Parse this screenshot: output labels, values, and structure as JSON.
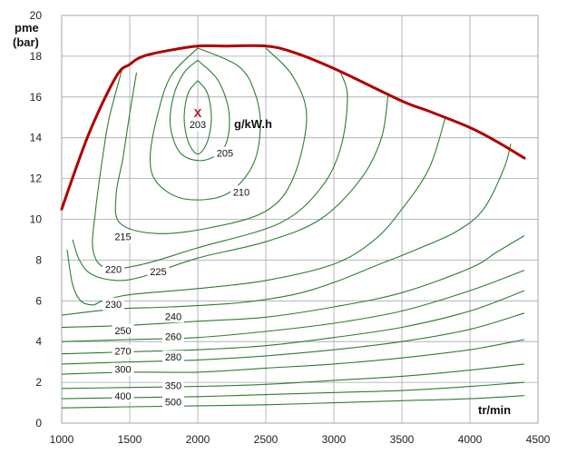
{
  "chart_data": {
    "type": "contour",
    "y_axis_title_line1": "pme",
    "y_axis_title_line2": "(bar)",
    "x_axis_title": "tr/min",
    "unit_label": "g/kW.h",
    "optimum_marker": {
      "symbol": "X",
      "rpm": 2000,
      "pme": 15.2
    },
    "xlim": [
      1000,
      4500
    ],
    "ylim": [
      0,
      20
    ],
    "x_ticks": [
      1000,
      1500,
      2000,
      2500,
      3000,
      3500,
      4000,
      4500
    ],
    "y_ticks": [
      0,
      2,
      4,
      6,
      8,
      10,
      12,
      14,
      16,
      18,
      20
    ],
    "grid": true,
    "colors": {
      "contour": "#2e7d32",
      "full_load": "#b00000",
      "grid": "#9ea7b0"
    },
    "full_load_curve": {
      "points": [
        [
          1000,
          10.5
        ],
        [
          1200,
          14.2
        ],
        [
          1400,
          17.0
        ],
        [
          1500,
          17.6
        ],
        [
          1600,
          18.0
        ],
        [
          1800,
          18.3
        ],
        [
          2000,
          18.5
        ],
        [
          2200,
          18.5
        ],
        [
          2500,
          18.5
        ],
        [
          2700,
          18.2
        ],
        [
          3000,
          17.4
        ],
        [
          3500,
          15.8
        ],
        [
          3700,
          15.3
        ],
        [
          4000,
          14.5
        ],
        [
          4200,
          13.8
        ],
        [
          4400,
          13.0
        ]
      ]
    },
    "contours": [
      {
        "label": "203",
        "label_at": [
          2000,
          14.6
        ],
        "points": [
          [
            2000,
            16.8
          ],
          [
            2070,
            16.2
          ],
          [
            2100,
            15.0
          ],
          [
            2070,
            13.8
          ],
          [
            2000,
            13.2
          ],
          [
            1930,
            13.8
          ],
          [
            1900,
            15.0
          ],
          [
            1930,
            16.2
          ],
          [
            2000,
            16.8
          ]
        ]
      },
      {
        "label": "205",
        "label_at": [
          2200,
          13.2
        ],
        "points": [
          [
            2000,
            17.8
          ],
          [
            2150,
            16.8
          ],
          [
            2230,
            15.2
          ],
          [
            2200,
            13.6
          ],
          [
            2050,
            12.9
          ],
          [
            1880,
            13.2
          ],
          [
            1800,
            14.5
          ],
          [
            1820,
            16.0
          ],
          [
            1900,
            17.2
          ],
          [
            2000,
            17.8
          ]
        ]
      },
      {
        "label": "210",
        "label_at": [
          2320,
          11.3
        ],
        "points": [
          [
            2000,
            18.4
          ],
          [
            2300,
            17.5
          ],
          [
            2420,
            16.2
          ],
          [
            2460,
            14.5
          ],
          [
            2400,
            12.6
          ],
          [
            2200,
            11.2
          ],
          [
            1900,
            11.0
          ],
          [
            1700,
            11.8
          ],
          [
            1650,
            13.0
          ],
          [
            1700,
            15.0
          ],
          [
            1800,
            17.0
          ],
          [
            2000,
            18.4
          ]
        ]
      },
      {
        "label": "215",
        "label_at": [
          1450,
          9.1
        ],
        "points": [
          [
            1550,
            17.2
          ],
          [
            1500,
            15.2
          ],
          [
            1450,
            13.0
          ],
          [
            1400,
            11.2
          ],
          [
            1430,
            9.8
          ],
          [
            1700,
            9.3
          ],
          [
            2100,
            9.6
          ],
          [
            2500,
            10.4
          ],
          [
            2700,
            12.0
          ],
          [
            2800,
            15.0
          ],
          [
            2700,
            17.0
          ],
          [
            2500,
            18.4
          ]
        ]
      },
      {
        "label": "220",
        "label_at": [
          1380,
          7.5
        ],
        "points": [
          [
            1450,
            17.5
          ],
          [
            1350,
            15.0
          ],
          [
            1300,
            13.0
          ],
          [
            1250,
            10.5
          ],
          [
            1230,
            8.5
          ],
          [
            1330,
            7.6
          ],
          [
            1600,
            7.8
          ],
          [
            2000,
            8.6
          ],
          [
            2600,
            9.8
          ],
          [
            2900,
            11.5
          ],
          [
            3050,
            13.5
          ],
          [
            3100,
            16.0
          ],
          [
            3050,
            17.2
          ]
        ]
      },
      {
        "label": "225",
        "label_at": [
          1710,
          7.4
        ],
        "points": [
          [
            1080,
            9.0
          ],
          [
            1130,
            8.0
          ],
          [
            1220,
            7.3
          ],
          [
            1400,
            7.0
          ],
          [
            1600,
            7.2
          ],
          [
            2000,
            8.1
          ],
          [
            2500,
            8.9
          ],
          [
            2900,
            10.0
          ],
          [
            3200,
            12.0
          ],
          [
            3350,
            14.0
          ],
          [
            3400,
            16.2
          ]
        ]
      },
      {
        "label": "230",
        "label_at": [
          1380,
          5.8
        ],
        "points": [
          [
            1040,
            8.5
          ],
          [
            1080,
            6.8
          ],
          [
            1140,
            6.0
          ],
          [
            1230,
            5.8
          ],
          [
            1300,
            6.0
          ],
          [
            1500,
            6.3
          ],
          [
            2000,
            6.6
          ],
          [
            2500,
            7.0
          ],
          [
            3000,
            7.8
          ],
          [
            3300,
            9.0
          ],
          [
            3500,
            10.5
          ],
          [
            3700,
            12.5
          ],
          [
            3820,
            15.0
          ]
        ]
      },
      {
        "label": "240",
        "label_at": [
          1820,
          5.2
        ],
        "points": [
          [
            1000,
            5.3
          ],
          [
            1400,
            5.6
          ],
          [
            1800,
            5.7
          ],
          [
            2300,
            5.9
          ],
          [
            2700,
            6.3
          ],
          [
            3000,
            6.9
          ],
          [
            3300,
            7.7
          ],
          [
            3600,
            8.5
          ],
          [
            3900,
            9.4
          ],
          [
            4100,
            10.5
          ],
          [
            4250,
            12.5
          ],
          [
            4300,
            13.7
          ]
        ]
      },
      {
        "label": "250",
        "label_at": [
          1450,
          4.5
        ],
        "points": [
          [
            1000,
            4.7
          ],
          [
            1500,
            4.8
          ],
          [
            2000,
            5.0
          ],
          [
            2500,
            5.2
          ],
          [
            3000,
            5.7
          ],
          [
            3500,
            6.4
          ],
          [
            4000,
            7.6
          ],
          [
            4200,
            8.4
          ],
          [
            4400,
            9.2
          ]
        ]
      },
      {
        "label": "260",
        "label_at": [
          1820,
          4.2
        ],
        "points": [
          [
            1000,
            4.0
          ],
          [
            1500,
            4.1
          ],
          [
            2000,
            4.2
          ],
          [
            2500,
            4.5
          ],
          [
            3000,
            4.9
          ],
          [
            3500,
            5.5
          ],
          [
            4000,
            6.5
          ],
          [
            4400,
            7.5
          ]
        ]
      },
      {
        "label": "270",
        "label_at": [
          1450,
          3.5
        ],
        "points": [
          [
            1000,
            3.4
          ],
          [
            1500,
            3.5
          ],
          [
            2000,
            3.6
          ],
          [
            2500,
            3.8
          ],
          [
            3000,
            4.2
          ],
          [
            3500,
            4.7
          ],
          [
            4000,
            5.5
          ],
          [
            4400,
            6.5
          ]
        ]
      },
      {
        "label": "280",
        "label_at": [
          1820,
          3.2
        ],
        "points": [
          [
            1000,
            2.9
          ],
          [
            1500,
            3.0
          ],
          [
            2000,
            3.1
          ],
          [
            2500,
            3.3
          ],
          [
            3000,
            3.6
          ],
          [
            3500,
            4.0
          ],
          [
            4000,
            4.6
          ],
          [
            4400,
            5.4
          ]
        ]
      },
      {
        "label": "300",
        "label_at": [
          1450,
          2.6
        ],
        "points": [
          [
            1000,
            2.4
          ],
          [
            1500,
            2.5
          ],
          [
            2000,
            2.5
          ],
          [
            2500,
            2.7
          ],
          [
            3000,
            2.9
          ],
          [
            3500,
            3.2
          ],
          [
            4000,
            3.6
          ],
          [
            4400,
            4.1
          ]
        ]
      },
      {
        "label": "350",
        "label_at": [
          1820,
          1.8
        ],
        "points": [
          [
            1000,
            1.7
          ],
          [
            1500,
            1.75
          ],
          [
            2000,
            1.8
          ],
          [
            2500,
            1.9
          ],
          [
            3000,
            2.1
          ],
          [
            3500,
            2.3
          ],
          [
            4000,
            2.6
          ],
          [
            4400,
            2.9
          ]
        ]
      },
      {
        "label": "400",
        "label_at": [
          1450,
          1.3
        ],
        "points": [
          [
            1000,
            1.2
          ],
          [
            1500,
            1.25
          ],
          [
            2000,
            1.3
          ],
          [
            2500,
            1.4
          ],
          [
            3000,
            1.5
          ],
          [
            3500,
            1.6
          ],
          [
            4000,
            1.8
          ],
          [
            4400,
            2.0
          ]
        ]
      },
      {
        "label": "500",
        "label_at": [
          1820,
          1.0
        ],
        "points": [
          [
            1000,
            0.75
          ],
          [
            1500,
            0.8
          ],
          [
            2000,
            0.85
          ],
          [
            2500,
            0.9
          ],
          [
            3000,
            1.0
          ],
          [
            3500,
            1.1
          ],
          [
            4000,
            1.2
          ],
          [
            4400,
            1.35
          ]
        ]
      }
    ]
  }
}
